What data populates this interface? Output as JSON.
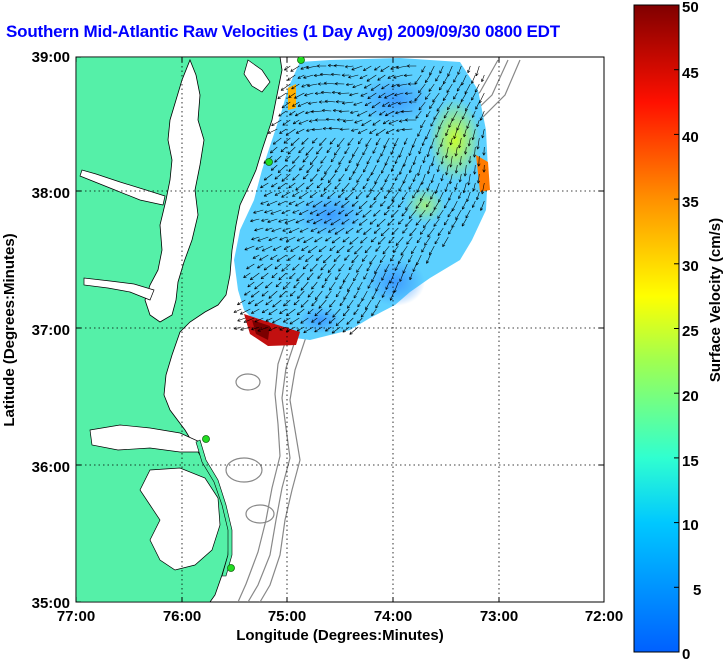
{
  "title": "Southern Mid-Atlantic Raw Velocities (1 Day Avg) 2009/09/30 0800 EDT",
  "map": {
    "xlabel": "Longitude (Degrees:Minutes)",
    "ylabel": "Latitude (Degrees:Minutes)",
    "x_ticks": [
      "77:00",
      "76:00",
      "75:00",
      "74:00",
      "73:00",
      "72:00"
    ],
    "y_ticks": [
      "39:00",
      "38:00",
      "37:00",
      "36:00",
      "35:00"
    ],
    "lon_range": [
      -77,
      -72
    ],
    "lat_range": [
      35,
      39
    ],
    "land_color": "#55f0a8",
    "ocean_color": "#ffffff",
    "station_color": "#22dd22"
  },
  "colorbar": {
    "label": "Surface Velocity (cm/s)",
    "ticks": [
      "50",
      "45",
      "40",
      "35",
      "30",
      "25",
      "20",
      "15",
      "10",
      "5",
      "0"
    ],
    "range": [
      0,
      50
    ],
    "colors": [
      "#0000ff",
      "#00ffff",
      "#ffff00",
      "#ff0000",
      "#800000"
    ]
  }
}
